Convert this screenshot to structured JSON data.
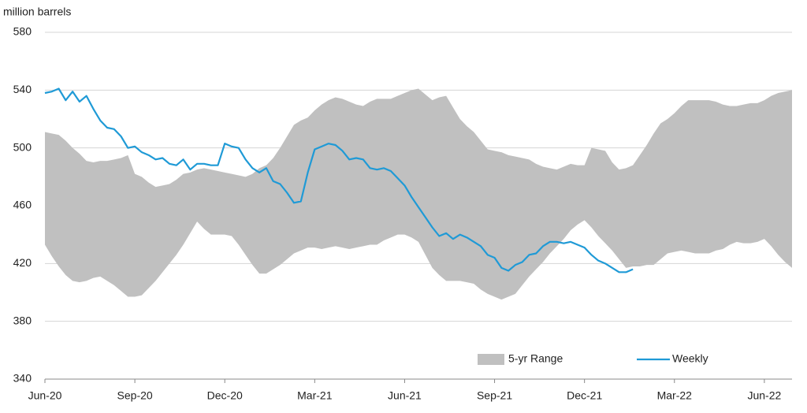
{
  "chart_data": {
    "type": "line",
    "y_label": "million barrels",
    "categories": [
      "Jun-20",
      null,
      null,
      null,
      null,
      null,
      null,
      null,
      null,
      null,
      null,
      null,
      null,
      "Sep-20",
      null,
      null,
      null,
      null,
      null,
      null,
      null,
      null,
      null,
      null,
      null,
      null,
      "Dec-20",
      null,
      null,
      null,
      null,
      null,
      null,
      null,
      null,
      null,
      null,
      null,
      null,
      "Mar-21",
      null,
      null,
      null,
      null,
      null,
      null,
      null,
      null,
      null,
      null,
      null,
      null,
      "Jun-21",
      null,
      null,
      null,
      null,
      null,
      null,
      null,
      null,
      null,
      null,
      null,
      null,
      "Sep-21",
      null,
      null,
      null,
      null,
      null,
      null,
      null,
      null,
      null,
      null,
      null,
      null,
      "Dec-21",
      null,
      null,
      null,
      null,
      null,
      null,
      null,
      null,
      null,
      null,
      null,
      null,
      "Mar-22",
      null,
      null,
      null,
      null,
      null,
      null,
      null,
      null,
      null,
      null,
      null,
      null,
      "Jun-22",
      null,
      null,
      null,
      null
    ],
    "series": [
      {
        "name": "5-yr Range",
        "color": "#c0c0c0",
        "high": [
          511,
          510,
          509,
          505,
          500,
          496,
          491,
          490,
          491,
          491,
          492,
          493,
          495,
          482,
          480,
          476,
          473,
          474,
          475,
          478,
          482,
          483,
          485,
          486,
          485,
          484,
          483,
          482,
          481,
          480,
          482,
          486,
          488,
          493,
          500,
          508,
          516,
          519,
          521,
          526,
          530,
          533,
          535,
          534,
          532,
          530,
          529,
          532,
          534,
          534,
          534,
          536,
          538,
          540,
          541,
          537,
          533,
          535,
          536,
          528,
          520,
          515,
          511,
          505,
          499,
          498,
          497,
          495,
          494,
          493,
          492,
          489,
          487,
          486,
          485,
          487,
          489,
          488,
          488,
          500,
          499,
          498,
          490,
          485,
          486,
          488,
          495,
          502,
          510,
          517,
          520,
          524,
          529,
          533,
          533,
          533,
          533,
          532,
          530,
          529,
          529,
          530,
          531,
          531,
          533,
          536,
          538,
          539,
          540
        ],
        "low": [
          433,
          425,
          418,
          412,
          408,
          407,
          408,
          410,
          411,
          408,
          405,
          401,
          397,
          397,
          398,
          403,
          408,
          414,
          420,
          426,
          433,
          441,
          449,
          444,
          440,
          440,
          440,
          439,
          433,
          426,
          419,
          413,
          413,
          416,
          419,
          423,
          427,
          429,
          431,
          431,
          430,
          431,
          432,
          431,
          430,
          431,
          432,
          433,
          433,
          436,
          438,
          440,
          440,
          438,
          435,
          426,
          417,
          412,
          408,
          408,
          408,
          407,
          406,
          402,
          399,
          397,
          395,
          397,
          399,
          405,
          411,
          416,
          421,
          427,
          432,
          437,
          443,
          447,
          450,
          445,
          439,
          434,
          429,
          423,
          417,
          418,
          418,
          419,
          419,
          423,
          427,
          428,
          429,
          428,
          427,
          427,
          427,
          429,
          430,
          433,
          435,
          434,
          434,
          435,
          437,
          432,
          426,
          421,
          417
        ]
      },
      {
        "name": "Weekly",
        "color": "#1f9ad6",
        "values": [
          538,
          539,
          541,
          533,
          539,
          532,
          536,
          527,
          519,
          514,
          513,
          508,
          500,
          501,
          497,
          495,
          492,
          493,
          489,
          488,
          492,
          485,
          489,
          489,
          488,
          488,
          503,
          501,
          500,
          492,
          486,
          483,
          486,
          477,
          475,
          469,
          462,
          463,
          483,
          499,
          501,
          503,
          502,
          498,
          492,
          493,
          492,
          486,
          485,
          486,
          484,
          479,
          474,
          466,
          459,
          452,
          445,
          439,
          441,
          437,
          440,
          438,
          435,
          432,
          426,
          424,
          417,
          415,
          419,
          421,
          426,
          427,
          432,
          435,
          435,
          434,
          435,
          433,
          431,
          426,
          422,
          420,
          417,
          414,
          414,
          416,
          null,
          null,
          null,
          null,
          null,
          null,
          null,
          null,
          null,
          null,
          null,
          null,
          null,
          null,
          null,
          null,
          null,
          null,
          null,
          null,
          null,
          null,
          null
        ]
      }
    ],
    "ylim": [
      340,
      580
    ],
    "yticks": [
      340,
      380,
      420,
      460,
      500,
      540,
      580
    ],
    "grid": true,
    "legend": "bottom-right"
  }
}
